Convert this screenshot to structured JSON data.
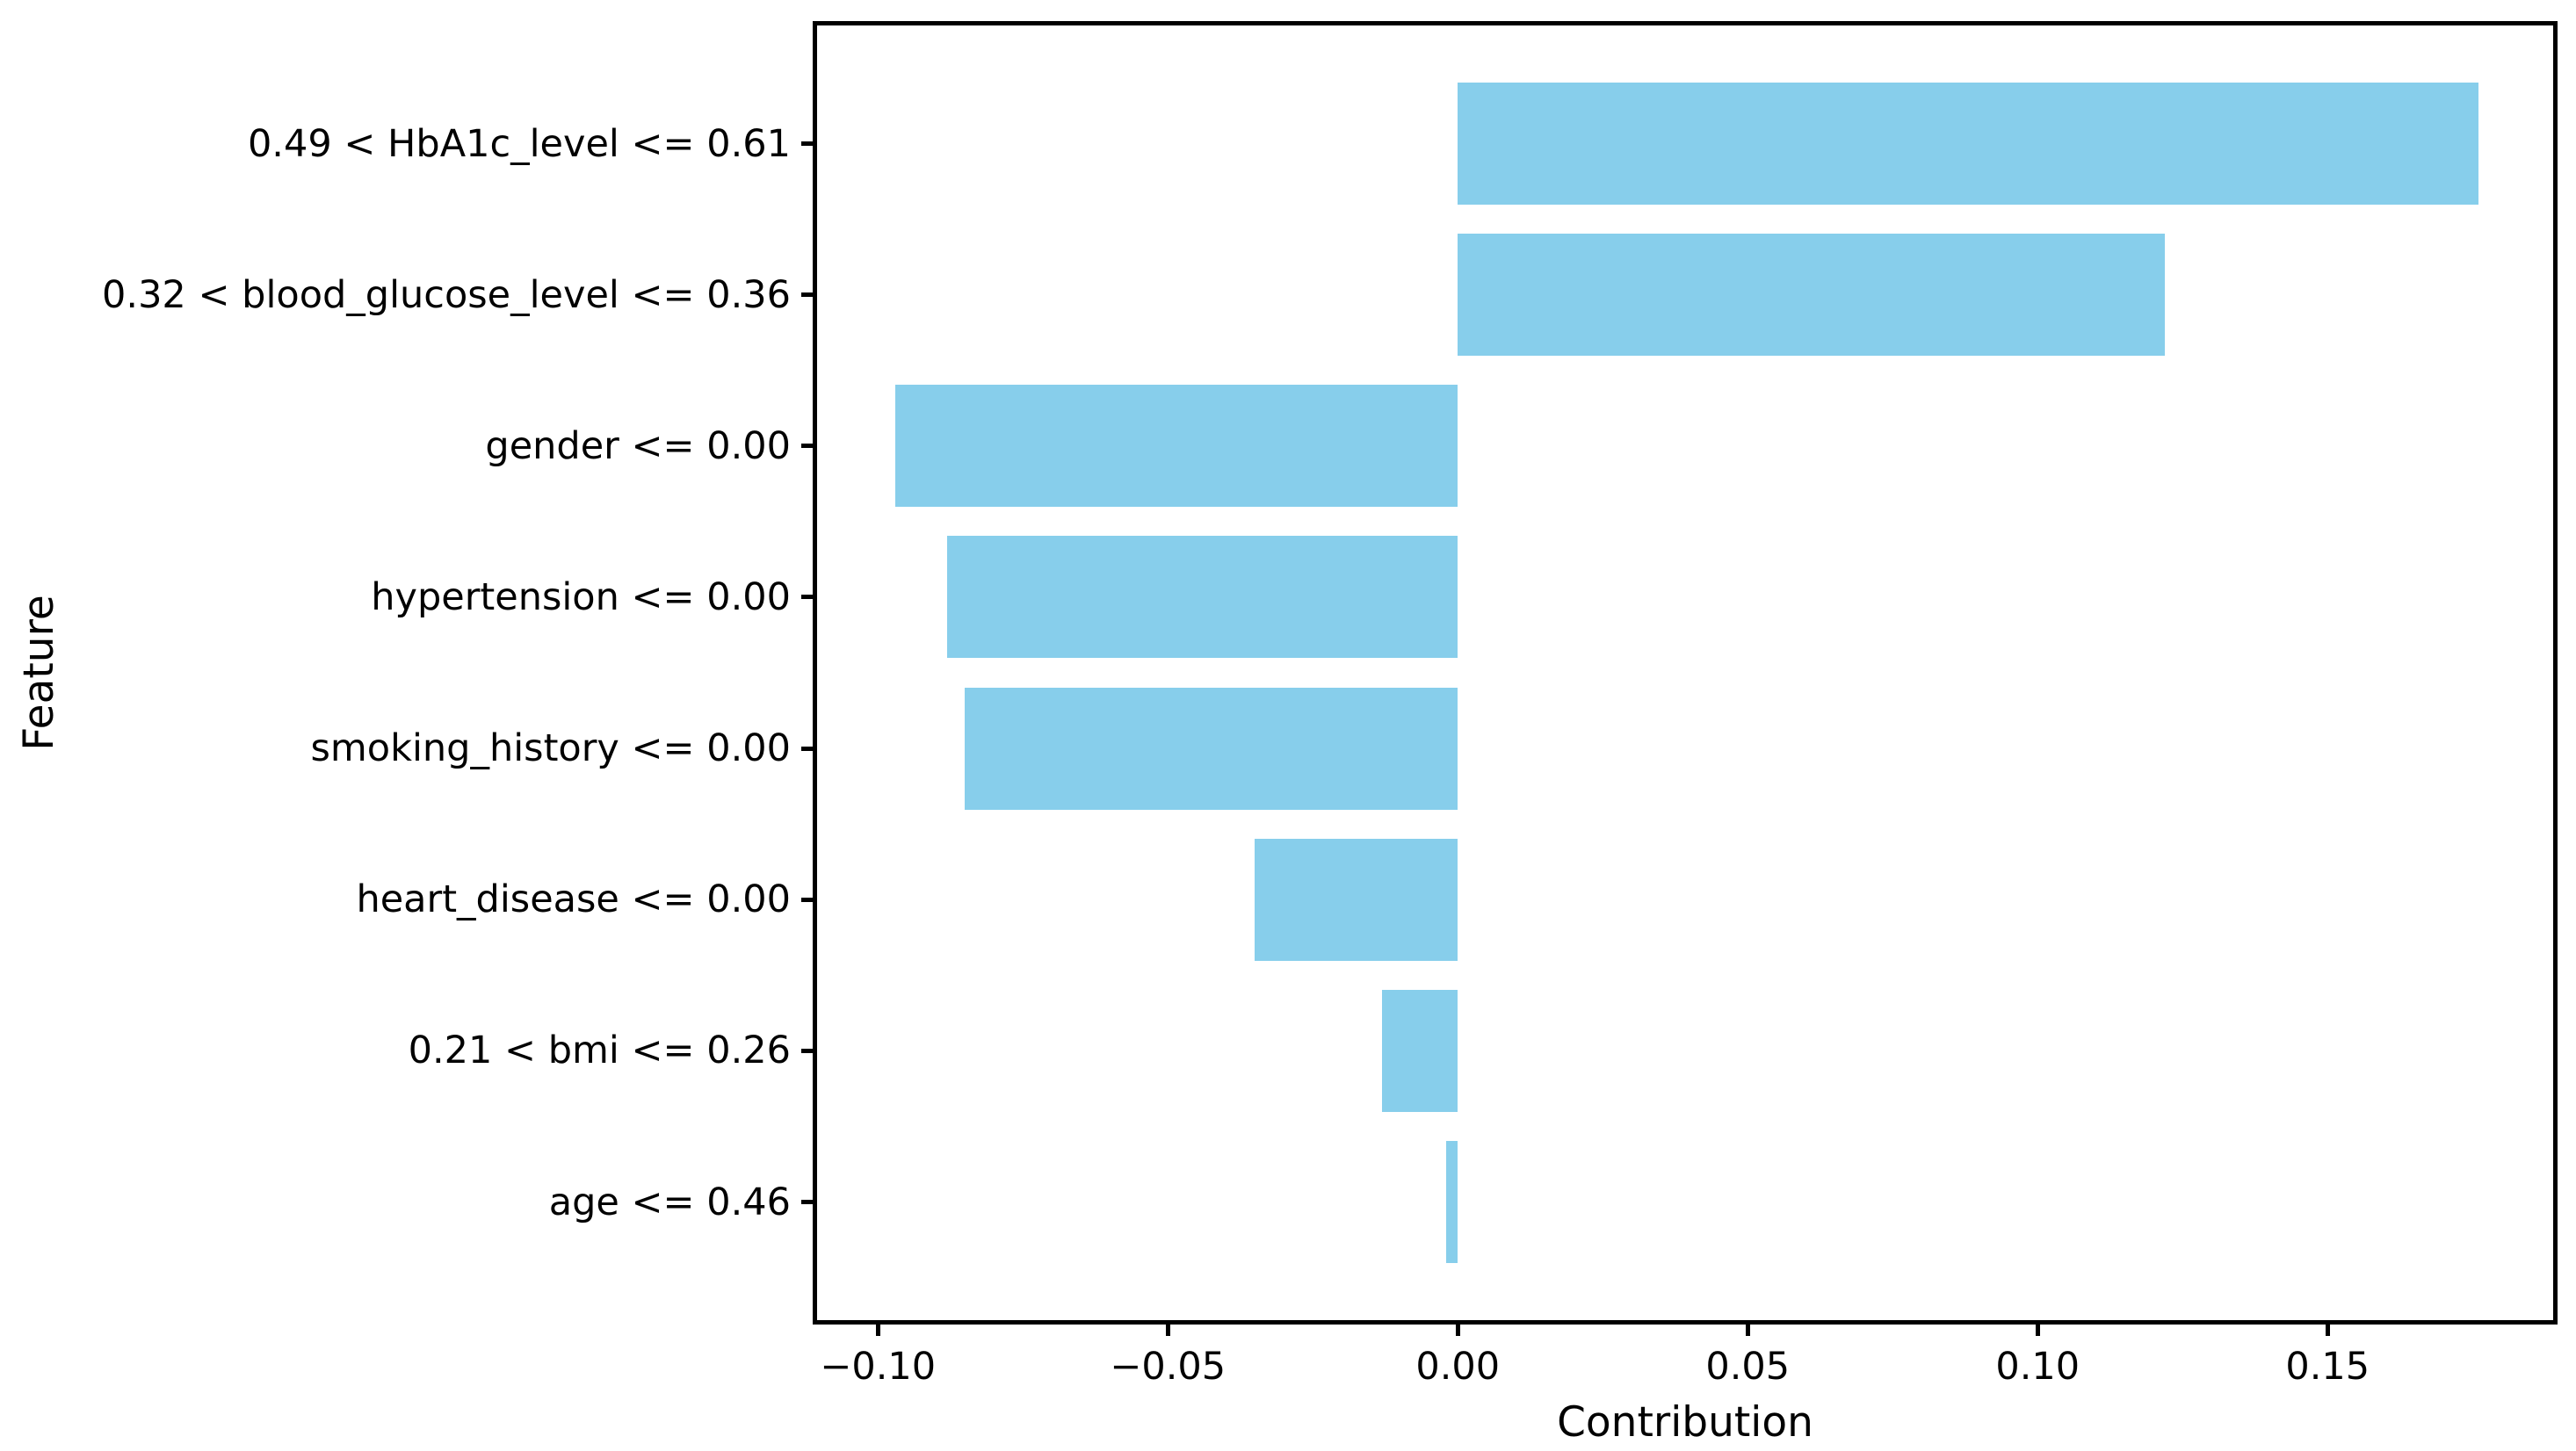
{
  "chart_data": {
    "type": "bar",
    "orientation": "horizontal",
    "xlabel": "Contribution",
    "ylabel": "Feature",
    "categories": [
      "0.49 < HbA1c_level <= 0.61",
      "0.32 < blood_glucose_level <= 0.36",
      "gender <= 0.00",
      "hypertension <= 0.00",
      "smoking_history <= 0.00",
      "heart_disease <= 0.00",
      "0.21 < bmi <= 0.26",
      "age <= 0.46"
    ],
    "values": [
      0.176,
      0.122,
      -0.097,
      -0.088,
      -0.085,
      -0.035,
      -0.013,
      -0.002
    ],
    "bar_color": "#87CEEB",
    "axis_color": "#000000",
    "background_color": "#ffffff",
    "xlim": [
      -0.1108,
      0.1892
    ],
    "xticks": [
      {
        "label": "−0.10",
        "value": -0.1
      },
      {
        "label": "−0.05",
        "value": -0.05
      },
      {
        "label": "0.00",
        "value": 0.0
      },
      {
        "label": "0.05",
        "value": 0.05
      },
      {
        "label": "0.10",
        "value": 0.1
      },
      {
        "label": "0.15",
        "value": 0.15
      }
    ],
    "grid": false,
    "legend": false
  }
}
